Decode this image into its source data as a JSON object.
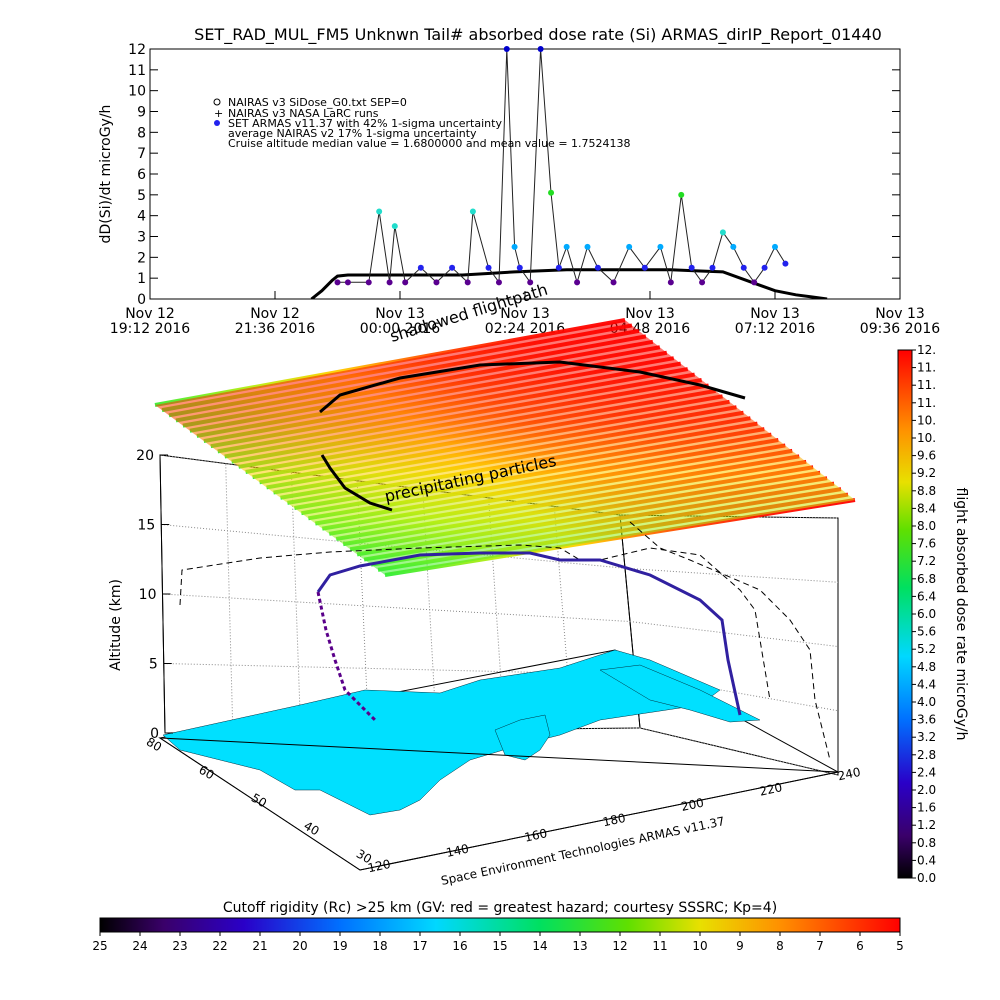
{
  "title": "SET_RAD_MUL_FM5 Unknwn Tail#  absorbed dose rate (Si) ARMAS_dirIP_Report_01440",
  "chart_data": [
    {
      "type": "line",
      "panel": "dose-rate-timeseries",
      "ylabel": "dD(Si)/dt microGy/h",
      "ylim": [
        0,
        12
      ],
      "yticks": [
        "0",
        "1",
        "2",
        "3",
        "4",
        "5",
        "6",
        "7",
        "8",
        "9",
        "10",
        "11",
        "12"
      ],
      "xlim_hours": [
        0,
        14.4
      ],
      "xticks": [
        {
          "line1": "Nov 12",
          "line2": "19:12 2016"
        },
        {
          "line1": "Nov 12",
          "line2": "21:36 2016"
        },
        {
          "line1": "Nov 13",
          "line2": "00:00 2016"
        },
        {
          "line1": "Nov 13",
          "line2": "02:24 2016"
        },
        {
          "line1": "Nov 13",
          "line2": "04:48 2016"
        },
        {
          "line1": "Nov 13",
          "line2": "07:12 2016"
        },
        {
          "line1": "Nov 13",
          "line2": "09:36 2016"
        }
      ],
      "legend": [
        "NAIRAS v3 SiDose_G0.txt SEP=0",
        "NAIRAS v3 NASA LaRC runs",
        "SET ARMAS v11.37 with 42% 1-sigma uncertainty",
        "average NAIRAS v2 17% 1-sigma uncertainty",
        "Cruise altitude median value = 1.6800000 and mean value = 1.7524138"
      ],
      "series": [
        {
          "color": "#000000",
          "x_hours": [
            3.1,
            3.3,
            3.5,
            3.6,
            3.8,
            4.2,
            5.0,
            6.0,
            7.0,
            8.0,
            9.0,
            10.0,
            10.5,
            11.0,
            11.5,
            12.0,
            12.4,
            12.7,
            13.0
          ],
          "values": [
            0.0,
            0.4,
            0.9,
            1.1,
            1.15,
            1.15,
            1.15,
            1.15,
            1.3,
            1.4,
            1.4,
            1.4,
            1.35,
            1.3,
            0.85,
            0.4,
            0.2,
            0.1,
            0.0
          ]
        },
        {
          "color": "#2222ee",
          "x_hours": [
            3.6,
            3.8,
            4.2,
            4.4,
            4.6,
            4.7,
            4.9,
            5.2,
            5.5,
            5.8,
            6.1,
            6.2,
            6.5,
            6.7,
            6.85,
            7.0,
            7.1,
            7.3,
            7.5,
            7.7,
            7.85,
            8.0,
            8.2,
            8.4,
            8.6,
            8.9,
            9.2,
            9.5,
            9.8,
            10.0,
            10.2,
            10.4,
            10.6,
            10.8,
            11.0,
            11.2,
            11.4,
            11.6,
            11.8,
            12.0,
            12.2
          ],
          "values": [
            0.8,
            0.8,
            0.8,
            4.2,
            0.8,
            3.5,
            0.8,
            1.5,
            0.8,
            1.5,
            0.8,
            4.2,
            1.5,
            0.8,
            12.0,
            2.5,
            1.5,
            0.8,
            12.0,
            5.1,
            1.5,
            2.5,
            0.8,
            2.5,
            1.5,
            0.8,
            2.5,
            1.5,
            2.5,
            0.8,
            5.0,
            1.5,
            0.8,
            1.5,
            3.2,
            2.5,
            1.5,
            0.8,
            1.5,
            2.5,
            1.7
          ]
        }
      ]
    },
    {
      "type": "scatter",
      "panel": "3d-flight-path",
      "ylabel": "Altitude (km)",
      "zlim": [
        0,
        20
      ],
      "zticks": [
        "0",
        "5",
        "10",
        "15",
        "20"
      ],
      "lat_ticks": [
        "80",
        "60",
        "50",
        "40",
        "30"
      ],
      "lon_ticks": [
        "120",
        "140",
        "160",
        "180",
        "200",
        "220",
        "240"
      ],
      "annotations": [
        "shadowed flightpath",
        "precipitating particles"
      ],
      "credit": "Space Environment Technologies ARMAS v11.37",
      "dose_colorbar": {
        "label": "flight absorbed dose rate microGy/h",
        "ticks": [
          "0.0",
          "0.4",
          "0.8",
          "1.2",
          "1.6",
          "2.0",
          "2.4",
          "2.8",
          "3.2",
          "3.6",
          "4.0",
          "4.4",
          "4.8",
          "5.2",
          "5.6",
          "6.0",
          "6.4",
          "6.8",
          "7.2",
          "7.6",
          "8.0",
          "8.4",
          "8.8",
          "9.2",
          "9.6",
          "10.",
          "10.",
          "11.",
          "11.",
          "11.",
          "12."
        ]
      },
      "rigidity_colorbar": {
        "label": "Cutoff rigidity (Rc) >25 km (GV: red = greatest hazard; courtesy SSSRC; Kp=4)",
        "ticks": [
          "25",
          "24",
          "23",
          "22",
          "21",
          "20",
          "19",
          "18",
          "17",
          "16",
          "15",
          "14",
          "13",
          "12",
          "11",
          "10",
          "9",
          "8",
          "7",
          "6",
          "5"
        ]
      }
    }
  ]
}
